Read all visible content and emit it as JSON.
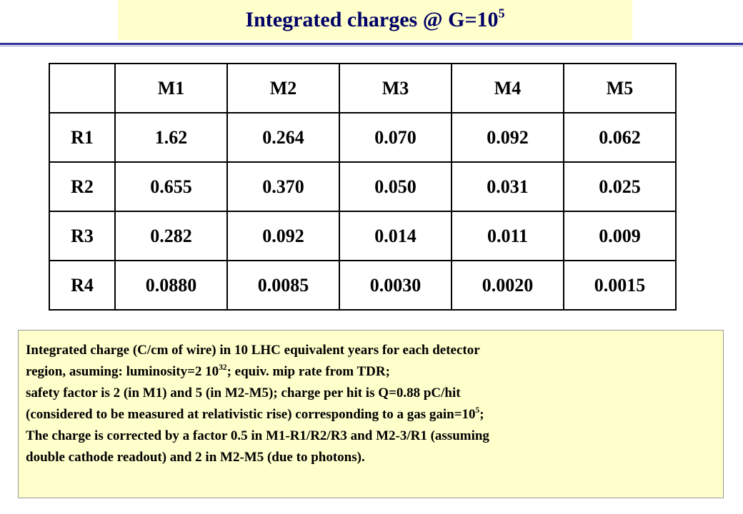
{
  "title": {
    "text": "Integrated charges @ G=10",
    "sup": "5"
  },
  "table": {
    "header": [
      "",
      "M1",
      "M2",
      "M3",
      "M4",
      "M5"
    ],
    "rows": [
      [
        "R1",
        "1.62",
        "0.264",
        "0.070",
        "0.092",
        "0.062"
      ],
      [
        "R2",
        "0.655",
        "0.370",
        "0.050",
        "0.031",
        "0.025"
      ],
      [
        "R3",
        "0.282",
        "0.092",
        "0.014",
        "0.011",
        "0.009"
      ],
      [
        "R4",
        "0.0880",
        "0.0085",
        "0.0030",
        "0.0020",
        "0.0015"
      ]
    ]
  },
  "note": {
    "lines": [
      [
        {
          "text": "Integrated charge (C/cm of wire) in 10 LHC equivalent years for each detector"
        }
      ],
      [
        {
          "text": "region, asuming: luminosity=2 10"
        },
        {
          "sup": "32"
        },
        {
          "text": "; equiv. mip rate from TDR;"
        }
      ],
      [
        {
          "text": "safety factor is 2 (in M1) and 5 (in M2-M5); charge per hit is Q=0.88 pC/hit"
        }
      ],
      [
        {
          "text": "(considered to be measured at relativistic rise) corresponding to a gas gain=10"
        },
        {
          "sup": "5"
        },
        {
          "text": ";"
        }
      ],
      [
        {
          "text": "The charge is corrected by a factor 0.5 in M1-R1/R2/R3 and M2-3/R1 (assuming"
        }
      ],
      [
        {
          "text": "double cathode readout) and 2 in M2-M5 (due to photons)."
        }
      ]
    ]
  }
}
